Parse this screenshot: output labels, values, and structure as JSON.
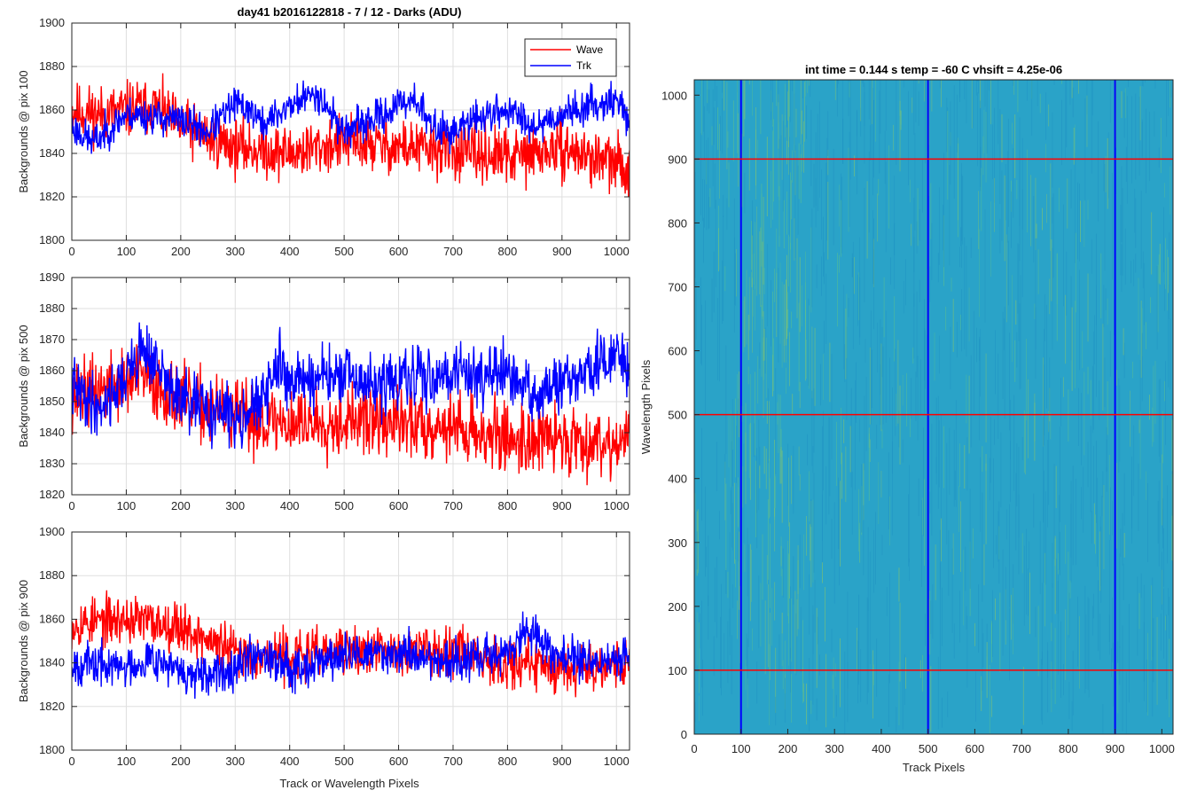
{
  "figure": {
    "suptitle": "day41 b2016122818 - 7 / 12 - Darks (ADU)",
    "xlabel": "Track or Wavelength Pixels"
  },
  "chart_data": [
    {
      "type": "line",
      "ylabel": "Backgrounds @ pix 100",
      "xlim": [
        0,
        1024
      ],
      "ylim": [
        1800,
        1900
      ],
      "xticks": [
        0,
        100,
        200,
        300,
        400,
        500,
        600,
        700,
        800,
        900,
        1000
      ],
      "yticks": [
        1800,
        1820,
        1840,
        1860,
        1880,
        1900
      ],
      "grid": true,
      "legend": {
        "position": "top-right",
        "entries": [
          "Wave",
          "Trk"
        ]
      },
      "series": [
        {
          "name": "Wave",
          "color": "#ff0000",
          "seed": 11,
          "knots": [
            [
              0,
              1860
            ],
            [
              50,
              1858
            ],
            [
              100,
              1860
            ],
            [
              150,
              1862
            ],
            [
              200,
              1852
            ],
            [
              300,
              1843
            ],
            [
              400,
              1840
            ],
            [
              500,
              1845
            ],
            [
              600,
              1843
            ],
            [
              700,
              1841
            ],
            [
              800,
              1838
            ],
            [
              900,
              1842
            ],
            [
              1000,
              1835
            ],
            [
              1024,
              1832
            ]
          ],
          "noise": 8
        },
        {
          "name": "Trk",
          "color": "#0000ff",
          "seed": 23,
          "knots": [
            [
              0,
              1852
            ],
            [
              40,
              1845
            ],
            [
              100,
              1858
            ],
            [
              150,
              1857
            ],
            [
              200,
              1855
            ],
            [
              250,
              1850
            ],
            [
              300,
              1863
            ],
            [
              330,
              1860
            ],
            [
              350,
              1853
            ],
            [
              400,
              1862
            ],
            [
              450,
              1868
            ],
            [
              500,
              1850
            ],
            [
              550,
              1855
            ],
            [
              600,
              1862
            ],
            [
              630,
              1866
            ],
            [
              660,
              1852
            ],
            [
              700,
              1850
            ],
            [
              750,
              1857
            ],
            [
              800,
              1860
            ],
            [
              850,
              1853
            ],
            [
              900,
              1858
            ],
            [
              950,
              1862
            ],
            [
              1000,
              1865
            ],
            [
              1024,
              1855
            ]
          ],
          "noise": 5
        }
      ]
    },
    {
      "type": "line",
      "ylabel": "Backgrounds @ pix 500",
      "xlim": [
        0,
        1024
      ],
      "ylim": [
        1820,
        1890
      ],
      "xticks": [
        0,
        100,
        200,
        300,
        400,
        500,
        600,
        700,
        800,
        900,
        1000
      ],
      "yticks": [
        1820,
        1830,
        1840,
        1850,
        1860,
        1870,
        1880,
        1890
      ],
      "grid": true,
      "series": [
        {
          "name": "Wave",
          "color": "#ff0000",
          "seed": 37,
          "knots": [
            [
              0,
              1852
            ],
            [
              80,
              1855
            ],
            [
              130,
              1858
            ],
            [
              200,
              1850
            ],
            [
              300,
              1845
            ],
            [
              400,
              1843
            ],
            [
              500,
              1844
            ],
            [
              600,
              1843
            ],
            [
              700,
              1842
            ],
            [
              800,
              1838
            ],
            [
              900,
              1838
            ],
            [
              1000,
              1837
            ],
            [
              1024,
              1838
            ]
          ],
          "noise": 7
        },
        {
          "name": "Trk",
          "color": "#0000ff",
          "seed": 41,
          "knots": [
            [
              0,
              1855
            ],
            [
              50,
              1848
            ],
            [
              100,
              1858
            ],
            [
              130,
              1868
            ],
            [
              160,
              1860
            ],
            [
              200,
              1850
            ],
            [
              300,
              1845
            ],
            [
              350,
              1850
            ],
            [
              380,
              1862
            ],
            [
              400,
              1857
            ],
            [
              500,
              1858
            ],
            [
              550,
              1855
            ],
            [
              650,
              1858
            ],
            [
              700,
              1860
            ],
            [
              800,
              1858
            ],
            [
              850,
              1852
            ],
            [
              900,
              1855
            ],
            [
              950,
              1860
            ],
            [
              1000,
              1865
            ],
            [
              1024,
              1860
            ]
          ],
          "noise": 6
        }
      ]
    },
    {
      "type": "line",
      "ylabel": "Backgrounds @ pix 900",
      "xlim": [
        0,
        1024
      ],
      "ylim": [
        1800,
        1900
      ],
      "xticks": [
        0,
        100,
        200,
        300,
        400,
        500,
        600,
        700,
        800,
        900,
        1000
      ],
      "yticks": [
        1800,
        1820,
        1840,
        1860,
        1880,
        1900
      ],
      "grid": true,
      "series": [
        {
          "name": "Wave",
          "color": "#ff0000",
          "seed": 53,
          "knots": [
            [
              0,
              1858
            ],
            [
              100,
              1860
            ],
            [
              200,
              1857
            ],
            [
              250,
              1850
            ],
            [
              300,
              1845
            ],
            [
              400,
              1843
            ],
            [
              500,
              1845
            ],
            [
              600,
              1845
            ],
            [
              700,
              1847
            ],
            [
              800,
              1840
            ],
            [
              900,
              1838
            ],
            [
              1024,
              1840
            ]
          ],
          "noise": 7
        },
        {
          "name": "Trk",
          "color": "#0000ff",
          "seed": 67,
          "knots": [
            [
              0,
              1840
            ],
            [
              100,
              1838
            ],
            [
              150,
              1843
            ],
            [
              200,
              1835
            ],
            [
              250,
              1832
            ],
            [
              300,
              1840
            ],
            [
              350,
              1845
            ],
            [
              400,
              1838
            ],
            [
              500,
              1843
            ],
            [
              600,
              1845
            ],
            [
              700,
              1840
            ],
            [
              800,
              1845
            ],
            [
              840,
              1855
            ],
            [
              900,
              1842
            ],
            [
              1000,
              1840
            ],
            [
              1024,
              1845
            ]
          ],
          "noise": 6
        }
      ]
    },
    {
      "type": "heatmap",
      "title": "int time = 0.144 s   temp = -60 C   vhsift = 4.25e-06",
      "xlabel": "Track Pixels",
      "ylabel": "Wavelength Pixels",
      "xlim": [
        0,
        1024
      ],
      "ylim": [
        0,
        1024
      ],
      "xticks": [
        0,
        100,
        200,
        300,
        400,
        500,
        600,
        700,
        800,
        900,
        1000
      ],
      "yticks": [
        0,
        100,
        200,
        300,
        400,
        500,
        600,
        700,
        800,
        900,
        1000
      ],
      "colormap": "parula",
      "base_color": "#2aa3c8",
      "vertical_lines": {
        "color": "#0000ff",
        "x": [
          100,
          500,
          900
        ]
      },
      "horizontal_lines": {
        "color": "#ff0000",
        "y": [
          100,
          500,
          900
        ]
      }
    }
  ]
}
